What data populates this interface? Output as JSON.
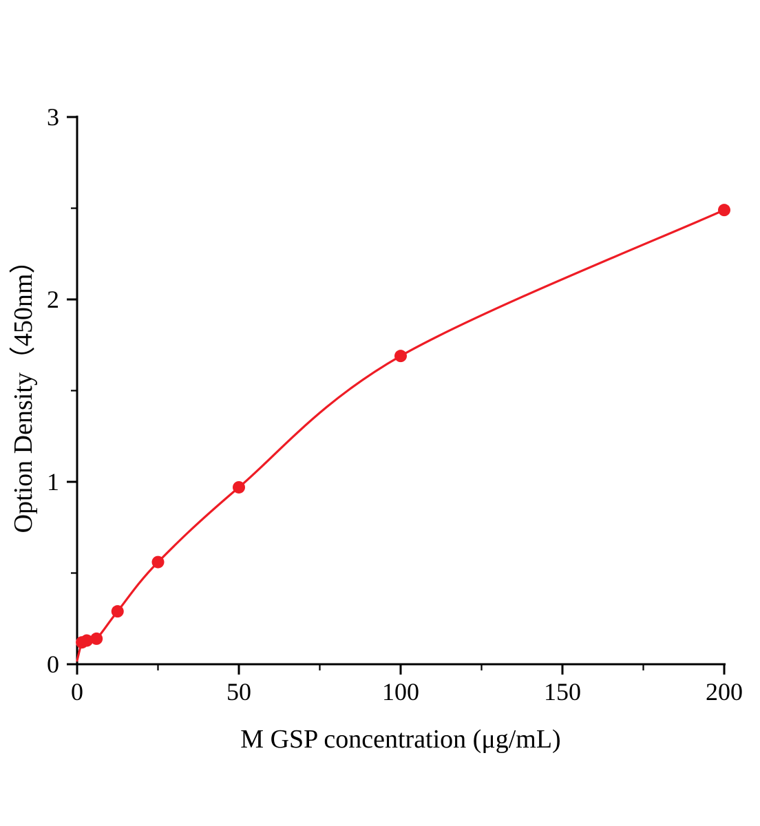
{
  "chart_data": {
    "type": "scatter",
    "title": "",
    "xlabel": "M GSP concentration (μg/mL)",
    "ylabel": "Option Density（450nm）",
    "xlim": [
      0,
      200
    ],
    "ylim": [
      0,
      3
    ],
    "x_major_ticks": [
      0,
      50,
      100,
      150,
      200
    ],
    "x_minor_ticks": [
      25,
      75,
      125,
      175
    ],
    "y_major_ticks": [
      0,
      1,
      2,
      3
    ],
    "y_minor_ticks": [
      0.5,
      1.5,
      2.5
    ],
    "grid": false,
    "legend_position": "none",
    "points": [
      {
        "x": 1.5,
        "y": 0.12
      },
      {
        "x": 3,
        "y": 0.13
      },
      {
        "x": 6,
        "y": 0.14
      },
      {
        "x": 12.5,
        "y": 0.29
      },
      {
        "x": 25,
        "y": 0.56
      },
      {
        "x": 50,
        "y": 0.97
      },
      {
        "x": 100,
        "y": 1.69
      },
      {
        "x": 200,
        "y": 2.49
      }
    ],
    "curve_start": {
      "x": 0,
      "y": 0.02
    },
    "colors": {
      "line": "#ee1c25",
      "marker": "#ee1c25",
      "axis": "#000000"
    },
    "marker_radius": 9,
    "line_width": 3.2
  }
}
